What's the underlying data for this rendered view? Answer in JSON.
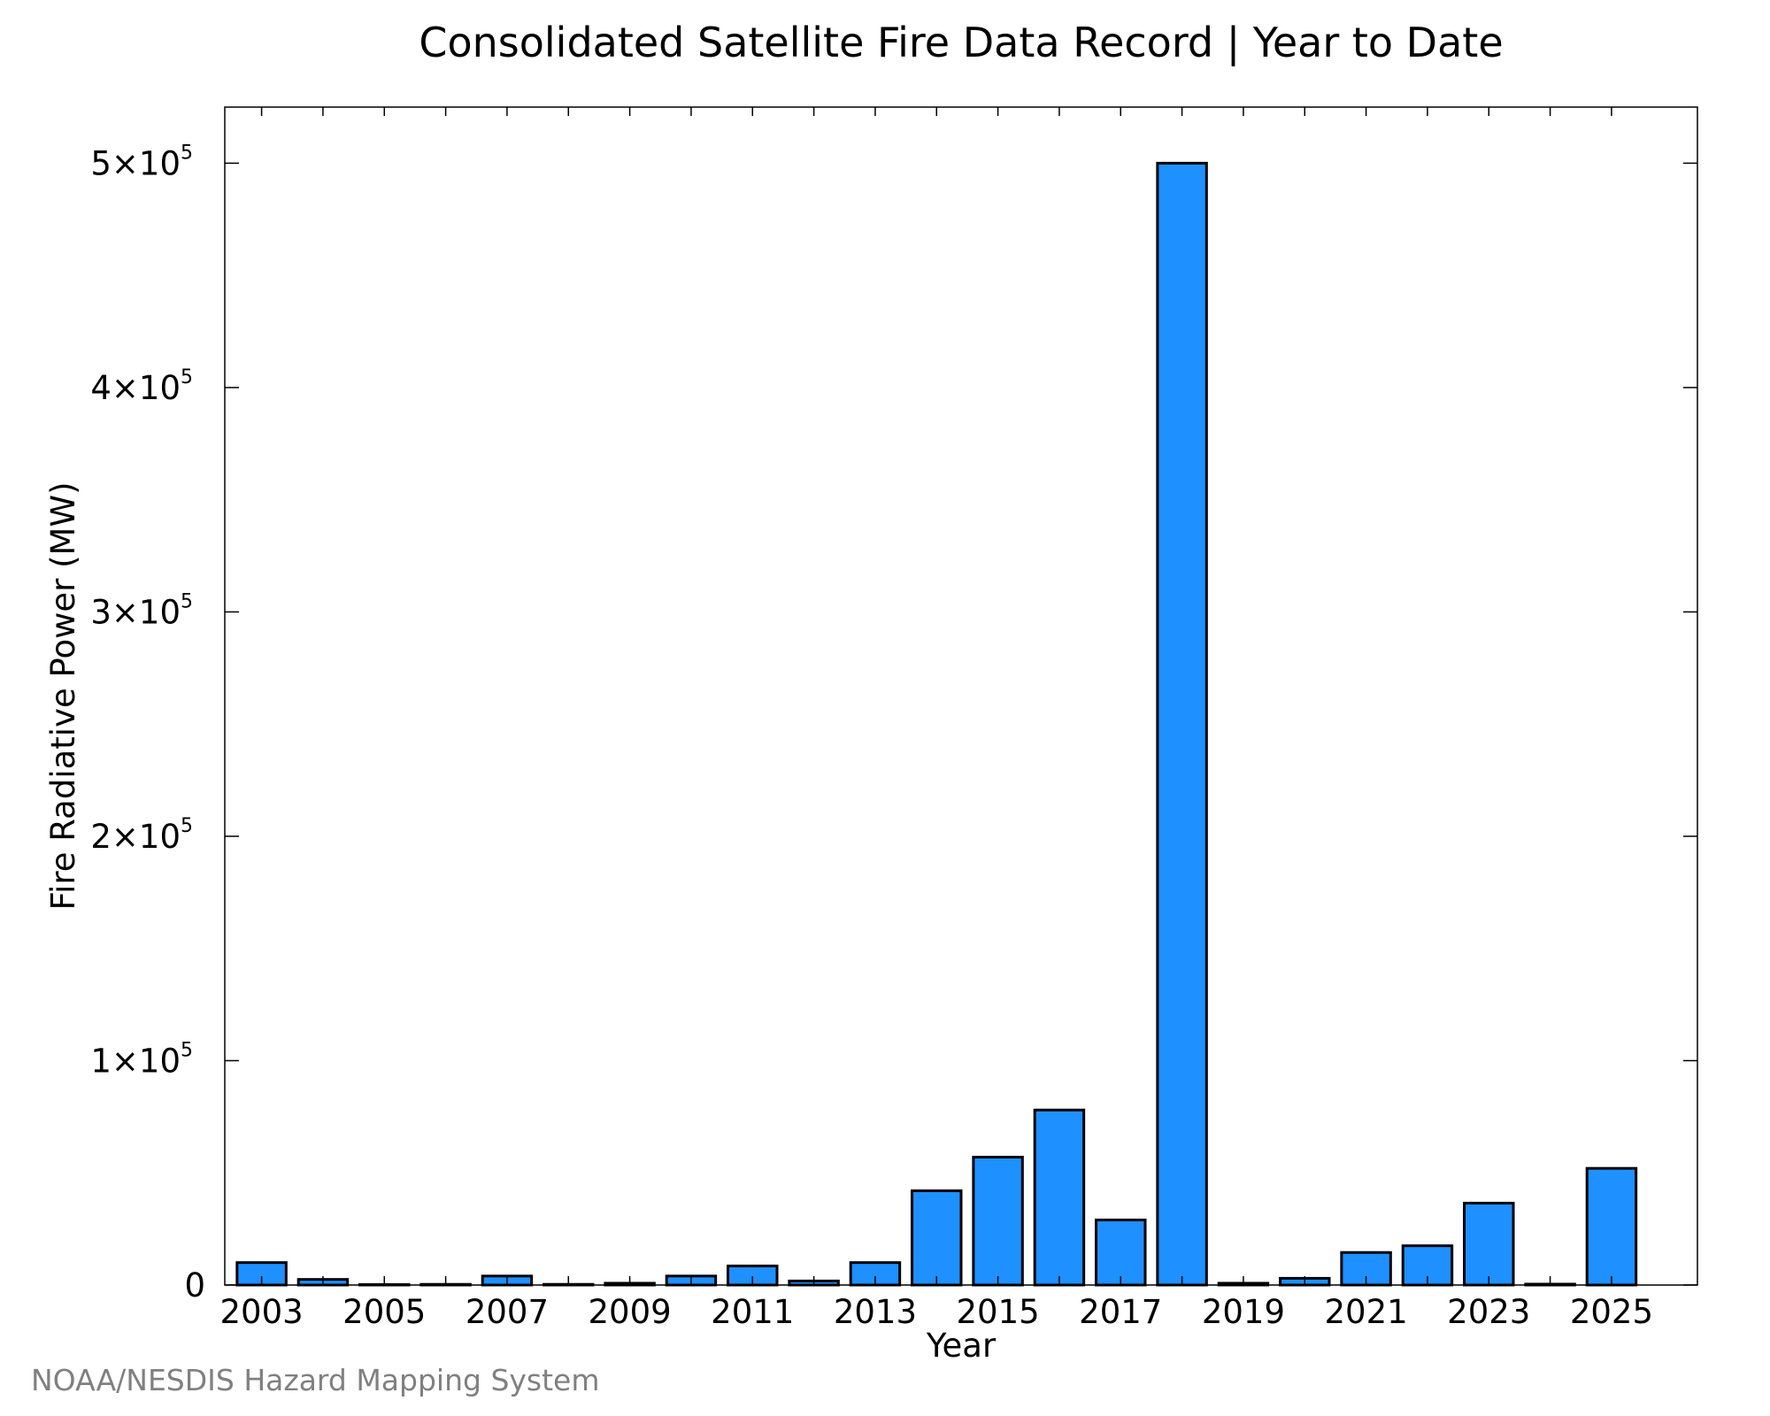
{
  "chart_data": {
    "type": "bar",
    "title": "Consolidated Satellite Fire Data Record | Year to Date",
    "xlabel": "Year",
    "ylabel": "Fire Radiative Power (MW)",
    "categories": [
      "2003",
      "2004",
      "2005",
      "2006",
      "2007",
      "2008",
      "2009",
      "2010",
      "2011",
      "2012",
      "2013",
      "2014",
      "2015",
      "2016",
      "2017",
      "2018",
      "2019",
      "2020",
      "2021",
      "2022",
      "2023",
      "2024",
      "2025"
    ],
    "values": [
      10000,
      2500,
      200,
      300,
      4000,
      300,
      800,
      4000,
      8500,
      1800,
      10000,
      42000,
      57000,
      78000,
      29000,
      500000,
      800,
      3000,
      14500,
      17500,
      36500,
      400,
      52000
    ],
    "xticks": [
      "2003",
      "2005",
      "2007",
      "2009",
      "2011",
      "2013",
      "2015",
      "2017",
      "2019",
      "2021",
      "2023",
      "2025"
    ],
    "yticks": [
      {
        "value": 0,
        "mantissa": "0",
        "exp": ""
      },
      {
        "value": 100000,
        "mantissa": "1×10",
        "exp": "5"
      },
      {
        "value": 200000,
        "mantissa": "2×10",
        "exp": "5"
      },
      {
        "value": 300000,
        "mantissa": "3×10",
        "exp": "5"
      },
      {
        "value": 400000,
        "mantissa": "4×10",
        "exp": "5"
      },
      {
        "value": 500000,
        "mantissa": "5×10",
        "exp": "5"
      }
    ],
    "ylim": [
      0,
      525000
    ],
    "xlim": [
      2002.4,
      2026.4
    ],
    "bar_color": "#1e90ff",
    "edge_color": "#000000",
    "grid": false,
    "legend": "none"
  },
  "footer": "NOAA/NESDIS Hazard Mapping System"
}
